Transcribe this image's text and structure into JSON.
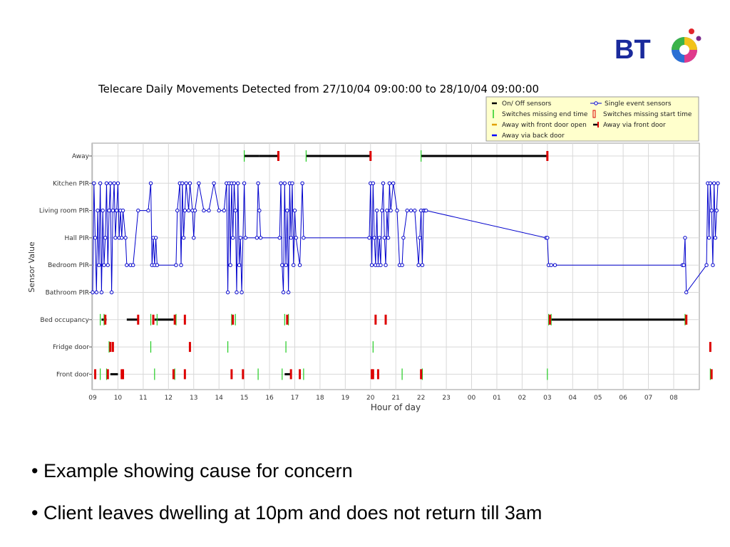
{
  "slide": {
    "logo_text": "BT",
    "bullets": [
      "• Example showing cause for concern",
      "• Client leaves dwelling at 10pm and does not return till 3am"
    ]
  },
  "colors": {
    "on_off": "#000000",
    "single_event": "#0000cc",
    "missing_end": "#22cc22",
    "missing_start": "#dd0000",
    "front_door_open": "#e0a000",
    "back_door": "#0000ff",
    "grid": "#d8d8d8",
    "legend_bg": "#ffffcc"
  },
  "chart_data": {
    "type": "event-timeline",
    "title": "Telecare Daily Movements Detected from 27/10/04 09:00:00 to 28/10/04 09:00:00",
    "xlabel": "Hour of day",
    "ylabel": "Sensor Value",
    "x_ticks": [
      "09",
      "10",
      "11",
      "12",
      "13",
      "14",
      "15",
      "16",
      "17",
      "18",
      "19",
      "20",
      "21",
      "22",
      "23",
      "00",
      "01",
      "02",
      "03",
      "04",
      "05",
      "06",
      "07",
      "08"
    ],
    "xlim_hours": [
      9,
      33.1
    ],
    "categories": [
      "Away",
      "Kitchen PIR",
      "Living room PIR",
      "Hall PIR",
      "Bedroom PIR",
      "Bathroom PIR",
      "Bed occupancy",
      "Fridge door",
      "Front door"
    ],
    "grid": true,
    "legend_position": "top-right",
    "legend": [
      {
        "label": "On/ Off sensors",
        "kind": "on_off"
      },
      {
        "label": "Single event sensors",
        "kind": "single_event"
      },
      {
        "label": "Switches missing end time",
        "kind": "missing_end"
      },
      {
        "label": "Switches missing start time",
        "kind": "missing_start"
      },
      {
        "label": "Away with front door open",
        "kind": "front_door_open"
      },
      {
        "label": "Away via front door",
        "kind": "away_front"
      },
      {
        "label": "Away via back door",
        "kind": "back_door"
      }
    ],
    "on_off_intervals": [
      {
        "sensor": "Away",
        "start": 15.0,
        "end": 15.6
      },
      {
        "sensor": "Away",
        "start": 15.6,
        "end": 16.35
      },
      {
        "sensor": "Away",
        "start": 17.45,
        "end": 20.0
      },
      {
        "sensor": "Away",
        "start": 22.0,
        "end": 27.0
      },
      {
        "sensor": "Bed occupancy",
        "start": 9.35,
        "end": 9.55
      },
      {
        "sensor": "Bed occupancy",
        "start": 10.35,
        "end": 10.8
      },
      {
        "sensor": "Bed occupancy",
        "start": 11.45,
        "end": 12.2
      },
      {
        "sensor": "Bed occupancy",
        "start": 27.15,
        "end": 32.5
      },
      {
        "sensor": "Front door",
        "start": 9.7,
        "end": 10.0
      },
      {
        "sensor": "Front door",
        "start": 16.6,
        "end": 16.85
      }
    ],
    "missing_end": [
      {
        "sensor": "Away",
        "t": 15.0
      },
      {
        "sensor": "Away",
        "t": 17.45
      },
      {
        "sensor": "Away",
        "t": 22.0
      },
      {
        "sensor": "Bed occupancy",
        "t": 9.3
      },
      {
        "sensor": "Bed occupancy",
        "t": 9.45
      },
      {
        "sensor": "Bed occupancy",
        "t": 11.3
      },
      {
        "sensor": "Bed occupancy",
        "t": 11.55
      },
      {
        "sensor": "Bed occupancy",
        "t": 12.3
      },
      {
        "sensor": "Bed occupancy",
        "t": 14.5
      },
      {
        "sensor": "Bed occupancy",
        "t": 14.65
      },
      {
        "sensor": "Bed occupancy",
        "t": 16.6
      },
      {
        "sensor": "Bed occupancy",
        "t": 16.75
      },
      {
        "sensor": "Bed occupancy",
        "t": 27.05
      },
      {
        "sensor": "Bed occupancy",
        "t": 27.15
      },
      {
        "sensor": "Bed occupancy",
        "t": 32.45
      },
      {
        "sensor": "Fridge door",
        "t": 9.65
      },
      {
        "sensor": "Fridge door",
        "t": 11.3
      },
      {
        "sensor": "Fridge door",
        "t": 14.35
      },
      {
        "sensor": "Fridge door",
        "t": 16.65
      },
      {
        "sensor": "Fridge door",
        "t": 20.1
      },
      {
        "sensor": "Front door",
        "t": 9.3
      },
      {
        "sensor": "Front door",
        "t": 9.55
      },
      {
        "sensor": "Front door",
        "t": 11.45
      },
      {
        "sensor": "Front door",
        "t": 12.25
      },
      {
        "sensor": "Front door",
        "t": 15.55
      },
      {
        "sensor": "Front door",
        "t": 16.5
      },
      {
        "sensor": "Front door",
        "t": 17.35
      },
      {
        "sensor": "Front door",
        "t": 21.25
      },
      {
        "sensor": "Front door",
        "t": 22.05
      },
      {
        "sensor": "Front door",
        "t": 27.0
      },
      {
        "sensor": "Front door",
        "t": 33.45
      }
    ],
    "missing_start": [
      {
        "sensor": "Away",
        "t": 16.35
      },
      {
        "sensor": "Away",
        "t": 20.0
      },
      {
        "sensor": "Away",
        "t": 27.0
      },
      {
        "sensor": "Bed occupancy",
        "t": 9.5
      },
      {
        "sensor": "Bed occupancy",
        "t": 10.8
      },
      {
        "sensor": "Bed occupancy",
        "t": 11.4
      },
      {
        "sensor": "Bed occupancy",
        "t": 12.25
      },
      {
        "sensor": "Bed occupancy",
        "t": 12.65
      },
      {
        "sensor": "Bed occupancy",
        "t": 14.55
      },
      {
        "sensor": "Bed occupancy",
        "t": 16.7
      },
      {
        "sensor": "Bed occupancy",
        "t": 20.2
      },
      {
        "sensor": "Bed occupancy",
        "t": 20.6
      },
      {
        "sensor": "Bed occupancy",
        "t": 27.1
      },
      {
        "sensor": "Bed occupancy",
        "t": 32.5
      },
      {
        "sensor": "Fridge door",
        "t": 9.7
      },
      {
        "sensor": "Fridge door",
        "t": 9.8
      },
      {
        "sensor": "Fridge door",
        "t": 12.85
      },
      {
        "sensor": "Fridge door",
        "t": 33.45
      },
      {
        "sensor": "Front door",
        "t": 9.1
      },
      {
        "sensor": "Front door",
        "t": 9.6
      },
      {
        "sensor": "Front door",
        "t": 10.15
      },
      {
        "sensor": "Front door",
        "t": 10.2
      },
      {
        "sensor": "Front door",
        "t": 12.2
      },
      {
        "sensor": "Front door",
        "t": 12.65
      },
      {
        "sensor": "Front door",
        "t": 14.5
      },
      {
        "sensor": "Front door",
        "t": 14.95
      },
      {
        "sensor": "Front door",
        "t": 16.85
      },
      {
        "sensor": "Front door",
        "t": 17.2
      },
      {
        "sensor": "Front door",
        "t": 20.05
      },
      {
        "sensor": "Front door",
        "t": 20.1
      },
      {
        "sensor": "Front door",
        "t": 20.3
      },
      {
        "sensor": "Front door",
        "t": 22.0
      },
      {
        "sensor": "Front door",
        "t": 33.5
      }
    ],
    "single_event_series": [
      [
        9.0,
        "Bathroom PIR"
      ],
      [
        9.05,
        "Kitchen PIR"
      ],
      [
        9.1,
        "Hall PIR"
      ],
      [
        9.15,
        "Bathroom PIR"
      ],
      [
        9.2,
        "Living room PIR"
      ],
      [
        9.25,
        "Bedroom PIR"
      ],
      [
        9.3,
        "Kitchen PIR"
      ],
      [
        9.35,
        "Bathroom PIR"
      ],
      [
        9.4,
        "Living room PIR"
      ],
      [
        9.45,
        "Bedroom PIR"
      ],
      [
        9.5,
        "Hall PIR"
      ],
      [
        9.55,
        "Kitchen PIR"
      ],
      [
        9.6,
        "Bedroom PIR"
      ],
      [
        9.65,
        "Living room PIR"
      ],
      [
        9.7,
        "Kitchen PIR"
      ],
      [
        9.75,
        "Bathroom PIR"
      ],
      [
        9.8,
        "Living room PIR"
      ],
      [
        9.85,
        "Kitchen PIR"
      ],
      [
        9.9,
        "Hall PIR"
      ],
      [
        9.95,
        "Living room PIR"
      ],
      [
        10.0,
        "Kitchen PIR"
      ],
      [
        10.05,
        "Hall PIR"
      ],
      [
        10.1,
        "Living room PIR"
      ],
      [
        10.15,
        "Hall PIR"
      ],
      [
        10.2,
        "Living room PIR"
      ],
      [
        10.3,
        "Hall PIR"
      ],
      [
        10.35,
        "Bedroom PIR"
      ],
      [
        10.5,
        "Bedroom PIR"
      ],
      [
        10.6,
        "Bedroom PIR"
      ],
      [
        10.8,
        "Living room PIR"
      ],
      [
        11.2,
        "Living room PIR"
      ],
      [
        11.3,
        "Kitchen PIR"
      ],
      [
        11.35,
        "Bedroom PIR"
      ],
      [
        11.4,
        "Hall PIR"
      ],
      [
        11.45,
        "Bedroom PIR"
      ],
      [
        11.5,
        "Hall PIR"
      ],
      [
        11.55,
        "Bedroom PIR"
      ],
      [
        12.3,
        "Bedroom PIR"
      ],
      [
        12.35,
        "Living room PIR"
      ],
      [
        12.45,
        "Kitchen PIR"
      ],
      [
        12.5,
        "Bedroom PIR"
      ],
      [
        12.55,
        "Kitchen PIR"
      ],
      [
        12.6,
        "Hall PIR"
      ],
      [
        12.65,
        "Living room PIR"
      ],
      [
        12.7,
        "Kitchen PIR"
      ],
      [
        12.8,
        "Living room PIR"
      ],
      [
        12.85,
        "Kitchen PIR"
      ],
      [
        12.95,
        "Living room PIR"
      ],
      [
        13.0,
        "Hall PIR"
      ],
      [
        13.05,
        "Living room PIR"
      ],
      [
        13.2,
        "Kitchen PIR"
      ],
      [
        13.4,
        "Living room PIR"
      ],
      [
        13.6,
        "Living room PIR"
      ],
      [
        13.8,
        "Kitchen PIR"
      ],
      [
        14.0,
        "Living room PIR"
      ],
      [
        14.2,
        "Living room PIR"
      ],
      [
        14.3,
        "Kitchen PIR"
      ],
      [
        14.35,
        "Bathroom PIR"
      ],
      [
        14.4,
        "Kitchen PIR"
      ],
      [
        14.45,
        "Bedroom PIR"
      ],
      [
        14.5,
        "Kitchen PIR"
      ],
      [
        14.55,
        "Hall PIR"
      ],
      [
        14.6,
        "Kitchen PIR"
      ],
      [
        14.65,
        "Living room PIR"
      ],
      [
        14.7,
        "Bathroom PIR"
      ],
      [
        14.75,
        "Kitchen PIR"
      ],
      [
        14.8,
        "Bedroom PIR"
      ],
      [
        14.85,
        "Hall PIR"
      ],
      [
        14.9,
        "Bathroom PIR"
      ],
      [
        15.0,
        "Kitchen PIR"
      ],
      [
        15.05,
        "Hall PIR"
      ],
      [
        15.5,
        "Hall PIR"
      ],
      [
        15.55,
        "Kitchen PIR"
      ],
      [
        15.6,
        "Living room PIR"
      ],
      [
        15.65,
        "Hall PIR"
      ],
      [
        16.4,
        "Hall PIR"
      ],
      [
        16.45,
        "Kitchen PIR"
      ],
      [
        16.5,
        "Bedroom PIR"
      ],
      [
        16.55,
        "Bathroom PIR"
      ],
      [
        16.6,
        "Kitchen PIR"
      ],
      [
        16.65,
        "Bedroom PIR"
      ],
      [
        16.7,
        "Living room PIR"
      ],
      [
        16.75,
        "Bathroom PIR"
      ],
      [
        16.8,
        "Kitchen PIR"
      ],
      [
        16.85,
        "Hall PIR"
      ],
      [
        16.9,
        "Kitchen PIR"
      ],
      [
        16.95,
        "Bedroom PIR"
      ],
      [
        17.0,
        "Living room PIR"
      ],
      [
        17.05,
        "Hall PIR"
      ],
      [
        17.2,
        "Bedroom PIR"
      ],
      [
        17.3,
        "Kitchen PIR"
      ],
      [
        17.35,
        "Hall PIR"
      ],
      [
        19.95,
        "Hall PIR"
      ],
      [
        20.0,
        "Kitchen PIR"
      ],
      [
        20.05,
        "Bedroom PIR"
      ],
      [
        20.1,
        "Kitchen PIR"
      ],
      [
        20.15,
        "Hall PIR"
      ],
      [
        20.2,
        "Bedroom PIR"
      ],
      [
        20.25,
        "Living room PIR"
      ],
      [
        20.3,
        "Bedroom PIR"
      ],
      [
        20.35,
        "Hall PIR"
      ],
      [
        20.4,
        "Bedroom PIR"
      ],
      [
        20.45,
        "Living room PIR"
      ],
      [
        20.5,
        "Kitchen PIR"
      ],
      [
        20.55,
        "Hall PIR"
      ],
      [
        20.6,
        "Bedroom PIR"
      ],
      [
        20.65,
        "Living room PIR"
      ],
      [
        20.7,
        "Hall PIR"
      ],
      [
        20.75,
        "Kitchen PIR"
      ],
      [
        20.8,
        "Living room PIR"
      ],
      [
        20.9,
        "Kitchen PIR"
      ],
      [
        21.05,
        "Living room PIR"
      ],
      [
        21.15,
        "Bedroom PIR"
      ],
      [
        21.25,
        "Bedroom PIR"
      ],
      [
        21.3,
        "Hall PIR"
      ],
      [
        21.45,
        "Living room PIR"
      ],
      [
        21.6,
        "Living room PIR"
      ],
      [
        21.75,
        "Living room PIR"
      ],
      [
        21.9,
        "Bedroom PIR"
      ],
      [
        21.95,
        "Hall PIR"
      ],
      [
        22.0,
        "Living room PIR"
      ],
      [
        22.05,
        "Bedroom PIR"
      ],
      [
        22.1,
        "Living room PIR"
      ],
      [
        22.15,
        "Living room PIR"
      ],
      [
        22.2,
        "Living room PIR"
      ],
      [
        26.95,
        "Hall PIR"
      ],
      [
        27.0,
        "Hall PIR"
      ],
      [
        27.05,
        "Bedroom PIR"
      ],
      [
        27.15,
        "Bedroom PIR"
      ],
      [
        27.3,
        "Bedroom PIR"
      ],
      [
        32.35,
        "Bedroom PIR"
      ],
      [
        32.4,
        "Bedroom PIR"
      ],
      [
        32.45,
        "Hall PIR"
      ],
      [
        32.5,
        "Bathroom PIR"
      ],
      [
        33.3,
        "Bedroom PIR"
      ],
      [
        33.35,
        "Kitchen PIR"
      ],
      [
        33.4,
        "Hall PIR"
      ],
      [
        33.45,
        "Kitchen PIR"
      ],
      [
        33.5,
        "Living room PIR"
      ],
      [
        33.55,
        "Bedroom PIR"
      ],
      [
        33.6,
        "Kitchen PIR"
      ],
      [
        33.65,
        "Hall PIR"
      ],
      [
        33.7,
        "Living room PIR"
      ],
      [
        33.75,
        "Kitchen PIR"
      ]
    ]
  }
}
